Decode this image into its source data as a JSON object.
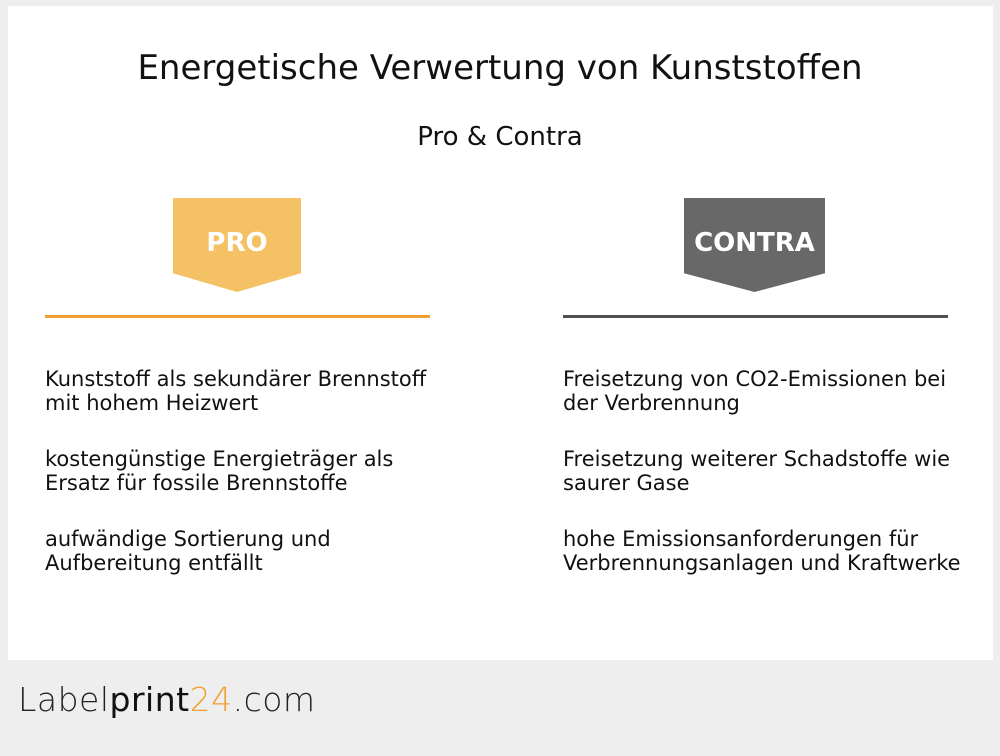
{
  "title": "Energetische Verwertung von Kunststoffen",
  "subtitle": "Pro & Contra",
  "colors": {
    "pro": "#f4c264",
    "pro_rule": "#f0a030",
    "contra": "#686868",
    "contra_rule": "#505050"
  },
  "pro": {
    "label": "PRO",
    "items": [
      "Kunststoff als sekundärer Brennstoff mit hohem Heizwert",
      "kostengünstige Energieträger als Ersatz für fossile Brennstoffe",
      "aufwändige Sortierung und Aufbereitung entfällt"
    ]
  },
  "contra": {
    "label": "CONTRA",
    "items": [
      "Freisetzung von CO2-Emissionen bei der Verbrennung",
      "Freisetzung weiterer Schadstoffe wie saurer Gase",
      "hohe Emissionsanforderungen für Verbrennungsanlagen und Kraftwerke"
    ]
  },
  "logo": {
    "part1": "Label",
    "part2": "print",
    "part3": "24",
    "part4": ".com"
  }
}
